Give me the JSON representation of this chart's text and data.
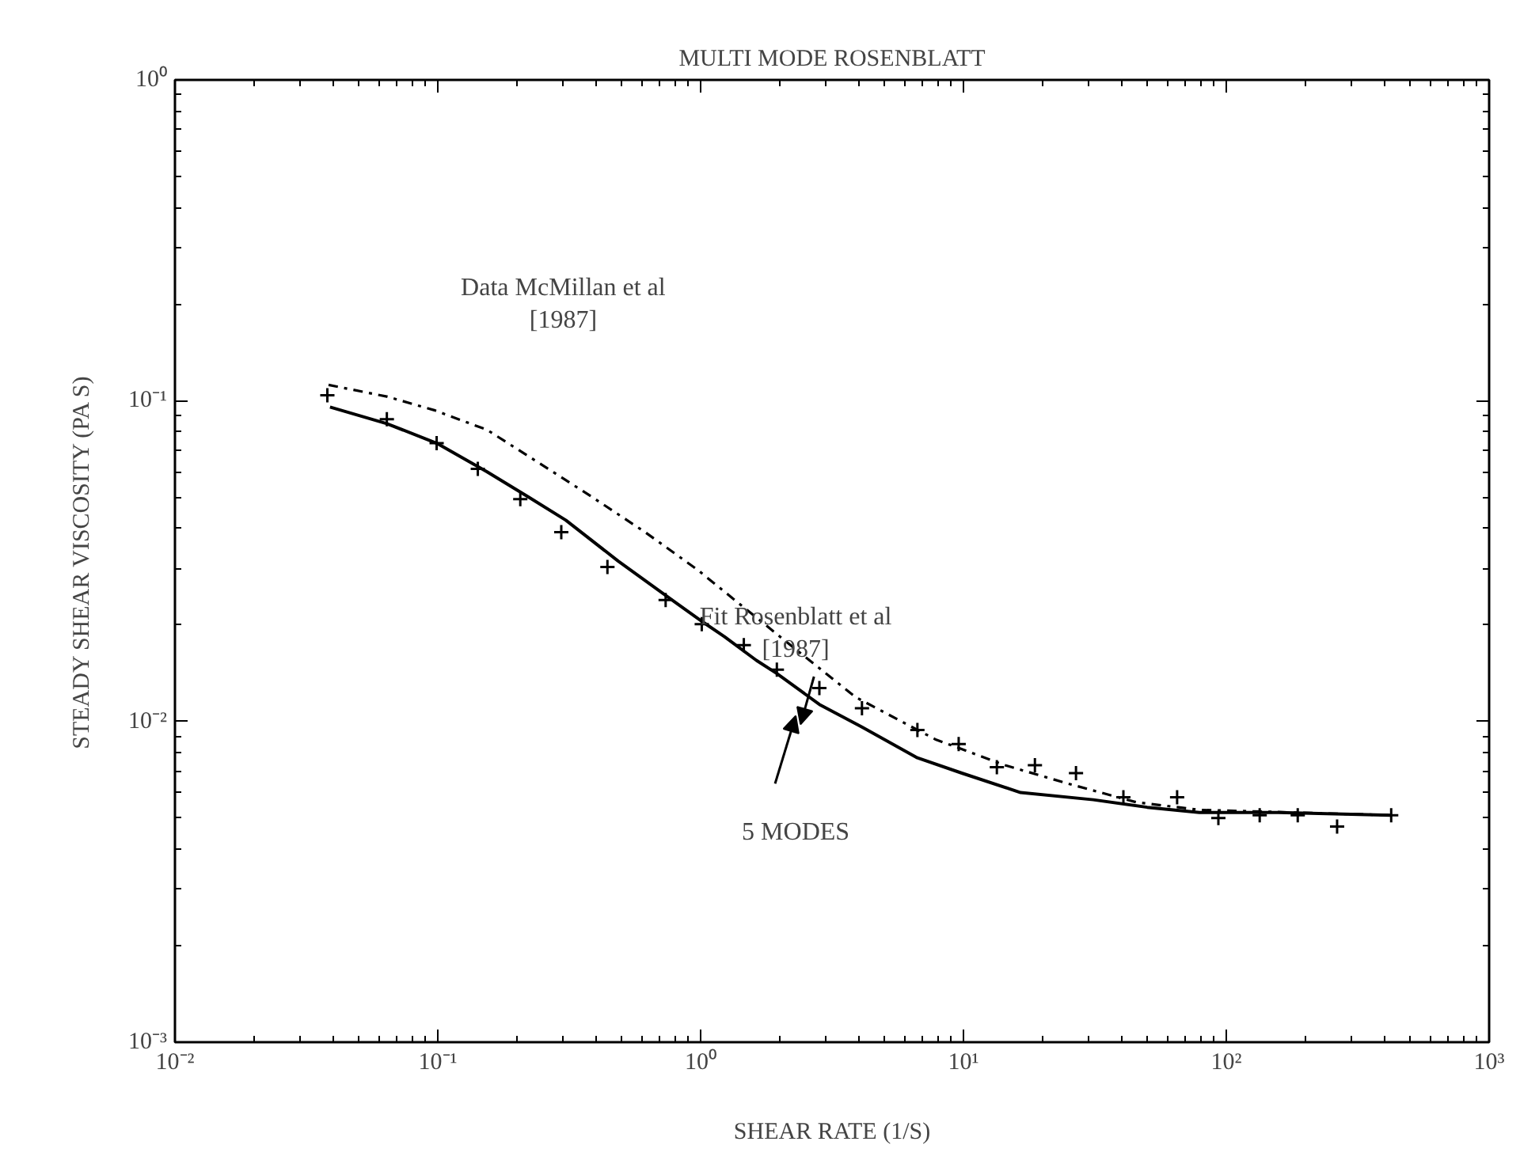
{
  "chart_data": {
    "type": "scatter",
    "title": "MULTI MODE ROSENBLATT",
    "xlabel": "SHEAR RATE (1/S)",
    "ylabel": "STEADY SHEAR VISCOSITY (PA S)",
    "log": "xy",
    "grid": false,
    "xlim": [
      0.01,
      1000
    ],
    "ylim": [
      0.001,
      1
    ],
    "xticks": [
      {
        "value": 0.01,
        "label": "10⁻²"
      },
      {
        "value": 0.1,
        "label": "10⁻¹"
      },
      {
        "value": 1,
        "label": "10⁰"
      },
      {
        "value": 10,
        "label": "10¹"
      },
      {
        "value": 100,
        "label": "10²"
      },
      {
        "value": 1000,
        "label": "10³"
      }
    ],
    "yticks": [
      {
        "value": 0.001,
        "label": "10⁻³"
      },
      {
        "value": 0.01,
        "label": "10⁻²"
      },
      {
        "value": 0.1,
        "label": "10⁻¹"
      },
      {
        "value": 1,
        "label": "10⁰"
      }
    ],
    "series": [
      {
        "marker": "cross",
        "color": "#000000",
        "x": [
          0.038,
          0.064,
          0.099,
          0.142,
          0.206,
          0.295,
          0.442,
          0.736,
          1.01,
          1.46,
          1.95,
          2.83,
          4.11,
          6.68,
          9.59,
          13.4,
          18.7,
          26.8,
          40.6,
          65.0,
          93.3,
          134,
          187,
          264,
          424
        ],
        "values": [
          0.104,
          0.0875,
          0.0737,
          0.0613,
          0.0493,
          0.0389,
          0.0303,
          0.0239,
          0.0201,
          0.0173,
          0.0145,
          0.0127,
          0.011,
          0.0094,
          0.0085,
          0.0072,
          0.0073,
          0.0069,
          0.0058,
          0.0058,
          0.005,
          0.0051,
          0.0051,
          0.0047,
          0.0051
        ]
      },
      {
        "type": "line",
        "line_style": "dashdot",
        "color": "#000000",
        "x": [
          0.0384,
          0.064,
          0.097,
          0.154,
          0.243,
          0.389,
          0.615,
          0.973,
          1.56,
          2.36,
          3.89,
          7.8,
          14.4,
          25,
          45.4,
          79,
          424
        ],
        "values": [
          0.112,
          0.103,
          0.0934,
          0.0811,
          0.0639,
          0.0499,
          0.0389,
          0.0297,
          0.0217,
          0.0165,
          0.0119,
          0.0088,
          0.0073,
          0.0064,
          0.0056,
          0.0053,
          0.0051
        ]
      },
      {
        "type": "line",
        "line_style": "solid",
        "color": "#000000",
        "x": [
          0.0389,
          0.064,
          0.099,
          0.154,
          0.223,
          0.307,
          0.486,
          0.736,
          1.03,
          1.23,
          1.63,
          1.95,
          2.83,
          4.11,
          6.68,
          9.86,
          16.5,
          31.2,
          50,
          79,
          158,
          424
        ],
        "values": [
          0.0955,
          0.0848,
          0.0737,
          0.06,
          0.0499,
          0.0424,
          0.0316,
          0.0247,
          0.0203,
          0.0184,
          0.0155,
          0.0141,
          0.0113,
          0.0096,
          0.0077,
          0.0069,
          0.006,
          0.0057,
          0.0054,
          0.0052,
          0.0052,
          0.0051
        ]
      }
    ],
    "annotations": [
      "Data McMillan et al\n[1987]",
      "Fit Rosenblatt et al\n[1987]",
      "5 MODES"
    ]
  }
}
